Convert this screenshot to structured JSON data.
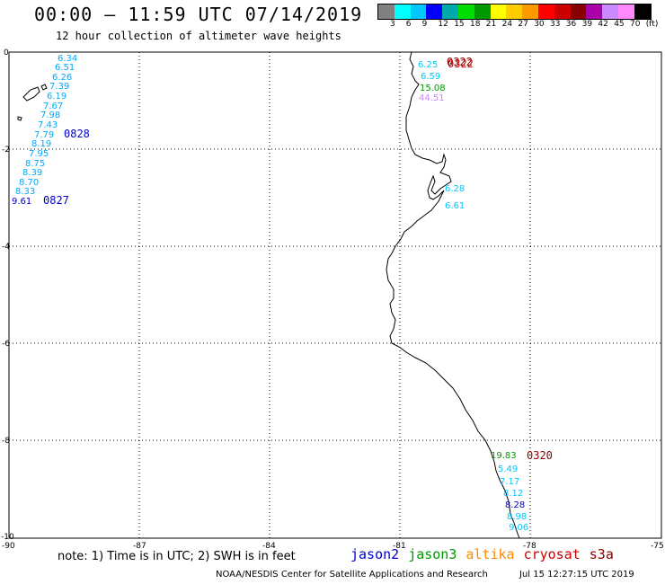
{
  "header": {
    "title": "00:00 – 11:59 UTC 07/14/2019",
    "subtitle": "12 hour collection of altimeter wave heights"
  },
  "legend": {
    "colors": [
      "#808080",
      "#00ffff",
      "#00c8ff",
      "#0000ff",
      "#00aaaa",
      "#00dd00",
      "#009900",
      "#ffff00",
      "#ffcc00",
      "#ff9900",
      "#ff0000",
      "#cc0000",
      "#880000",
      "#aa00aa",
      "#cc88ff",
      "#ff88ff",
      "#000000"
    ],
    "ticks": [
      "3",
      "6",
      "9",
      "12",
      "15",
      "18",
      "21",
      "24",
      "27",
      "30",
      "33",
      "36",
      "39",
      "42",
      "45",
      "70",
      "(ft)"
    ]
  },
  "axes": {
    "x_ticks": [
      "-90",
      "-87",
      "-84",
      "-81",
      "-78",
      "-75"
    ],
    "y_ticks": [
      "0",
      "-2",
      "-4",
      "-6",
      "-8",
      "-10"
    ]
  },
  "tracks": {
    "west": {
      "values": [
        "6.34",
        "6.51",
        "6.26",
        "7.39",
        "6.19",
        "7.67",
        "7.98",
        "7.43",
        "7.79",
        "8.19",
        "7.95",
        "8.75",
        "8.39",
        "8.70",
        "8.33",
        "9.61"
      ],
      "time_upper": "0828",
      "time_lower": "0827"
    },
    "north": {
      "values": [
        "6.25",
        "6.59",
        "15.08",
        "44.51"
      ],
      "time": "0322",
      "time_overlap": "0322"
    },
    "mid": {
      "values": [
        "6.28",
        "6.61"
      ]
    },
    "south": {
      "values": [
        "19.83",
        "5.49",
        "7.17",
        "8.12",
        "8.28",
        "8.98",
        "9.06"
      ],
      "time": "0320"
    }
  },
  "note": "note: 1) Time is in UTC; 2) SWH is in feet",
  "satellites": [
    {
      "name": "jason2",
      "color": "#0000cc"
    },
    {
      "name": "jason3",
      "color": "#009900"
    },
    {
      "name": "altika",
      "color": "#ff8800"
    },
    {
      "name": "cryosat",
      "color": "#cc0000"
    },
    {
      "name": "s3a",
      "color": "#880000"
    }
  ],
  "footer": {
    "left": "NOAA/NESDIS Center for Satellite Applications and Research",
    "right": "Jul 15 12:27:15 UTC 2019"
  }
}
